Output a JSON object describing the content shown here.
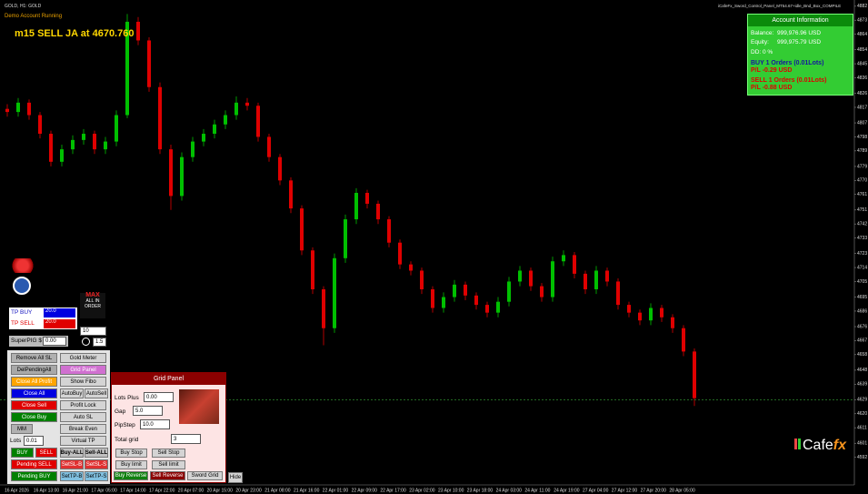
{
  "header": {
    "symbol": "GOLD, H1: GOLD",
    "account": "Demo Account Running",
    "signal": "m15 SELL JA at 4670.760",
    "indicator": "iCafeFx_Sword_Control_Panel_MT54.67+idle_Bnd_Box_COMPILE"
  },
  "chart_data": {
    "type": "candlestick",
    "up_color": "#00c000",
    "down_color": "#e00000",
    "bid_color": "#2e8b2e",
    "candles": [
      [
        4816,
        4819,
        4811,
        4814
      ],
      [
        4814,
        4823,
        4811,
        4820
      ],
      [
        4820,
        4822,
        4809,
        4812
      ],
      [
        4812,
        4814,
        4797,
        4800
      ],
      [
        4800,
        4802,
        4779,
        4782
      ],
      [
        4782,
        4793,
        4779,
        4790
      ],
      [
        4790,
        4799,
        4787,
        4796
      ],
      [
        4796,
        4803,
        4793,
        4800
      ],
      [
        4800,
        4802,
        4787,
        4790
      ],
      [
        4790,
        4798,
        4787,
        4795
      ],
      [
        4795,
        4815,
        4792,
        4812
      ],
      [
        4812,
        4877,
        4810,
        4872
      ],
      [
        4872,
        4875,
        4857,
        4860
      ],
      [
        4860,
        4862,
        4827,
        4830
      ],
      [
        4830,
        4833,
        4787,
        4790
      ],
      [
        4790,
        4793,
        4751,
        4760
      ],
      [
        4760,
        4788,
        4757,
        4785
      ],
      [
        4785,
        4798,
        4782,
        4795
      ],
      [
        4795,
        4803,
        4792,
        4800
      ],
      [
        4800,
        4809,
        4797,
        4806
      ],
      [
        4806,
        4815,
        4803,
        4812
      ],
      [
        4812,
        4824,
        4809,
        4820
      ],
      [
        4820,
        4823,
        4815,
        4818
      ],
      [
        4818,
        4820,
        4795,
        4798
      ],
      [
        4798,
        4800,
        4782,
        4785
      ],
      [
        4785,
        4787,
        4767,
        4770
      ],
      [
        4770,
        4772,
        4749,
        4752
      ],
      [
        4752,
        4754,
        4722,
        4725
      ],
      [
        4725,
        4727,
        4697,
        4700
      ],
      [
        4700,
        4702,
        4664,
        4675
      ],
      [
        4675,
        4723,
        4672,
        4720
      ],
      [
        4720,
        4748,
        4717,
        4745
      ],
      [
        4745,
        4765,
        4742,
        4762
      ],
      [
        4762,
        4764,
        4752,
        4755
      ],
      [
        4755,
        4757,
        4742,
        4745
      ],
      [
        4745,
        4747,
        4727,
        4730
      ],
      [
        4730,
        4732,
        4713,
        4716
      ],
      [
        4716,
        4718,
        4709,
        4712
      ],
      [
        4712,
        4714,
        4697,
        4700
      ],
      [
        4700,
        4702,
        4685,
        4688
      ],
      [
        4688,
        4698,
        4685,
        4695
      ],
      [
        4695,
        4706,
        4692,
        4703
      ],
      [
        4703,
        4705,
        4693,
        4696
      ],
      [
        4696,
        4698,
        4687,
        4690
      ],
      [
        4690,
        4692,
        4682,
        4685
      ],
      [
        4685,
        4695,
        4682,
        4692
      ],
      [
        4692,
        4708,
        4689,
        4705
      ],
      [
        4705,
        4715,
        4702,
        4712
      ],
      [
        4712,
        4714,
        4699,
        4702
      ],
      [
        4702,
        4704,
        4692,
        4695
      ],
      [
        4695,
        4721,
        4692,
        4718
      ],
      [
        4718,
        4725,
        4715,
        4722
      ],
      [
        4722,
        4724,
        4707,
        4710
      ],
      [
        4710,
        4712,
        4697,
        4700
      ],
      [
        4700,
        4715,
        4697,
        4712
      ],
      [
        4712,
        4714,
        4702,
        4705
      ],
      [
        4705,
        4707,
        4687,
        4690
      ],
      [
        4690,
        4692,
        4682,
        4685
      ],
      [
        4685,
        4687,
        4677,
        4680
      ],
      [
        4680,
        4691,
        4677,
        4688
      ],
      [
        4688,
        4690,
        4679,
        4682
      ],
      [
        4682,
        4684,
        4672,
        4675
      ],
      [
        4675,
        4677,
        4657,
        4660
      ],
      [
        4660,
        4662,
        4625,
        4630
      ]
    ],
    "ylim": [
      4576,
      4886
    ],
    "yticks": [
      4882,
      4873,
      4864,
      4854,
      4845,
      4836,
      4826,
      4817,
      4807,
      4798,
      4789,
      4779,
      4770,
      4761,
      4751,
      4742,
      4733,
      4723,
      4714,
      4705,
      4695,
      4686,
      4676,
      4667,
      4658,
      4648,
      4639,
      4629,
      4620,
      4611,
      4601,
      4592
    ],
    "bid_line": 4629,
    "time_labels": [
      "16 Apr 2026",
      "16 Apr 13:00",
      "16 Apr 21:00",
      "17 Apr 05:00",
      "17 Apr 14:00",
      "17 Apr 22:00",
      "20 Apr 07:00",
      "20 Apr 15:00",
      "20 Apr 23:00",
      "21 Apr 08:00",
      "21 Apr 16:00",
      "22 Apr 01:00",
      "22 Apr 09:00",
      "22 Apr 17:00",
      "23 Apr 02:00",
      "23 Apr 10:00",
      "23 Apr 18:00",
      "24 Apr 03:00",
      "24 Apr 11:00",
      "24 Apr 19:00",
      "27 Apr 04:00",
      "27 Apr 12:00",
      "27 Apr 20:00",
      "28 Apr 05:00"
    ]
  },
  "account_panel": {
    "title": "Account Information",
    "balance_label": "Balance:",
    "balance": "999,976.96 USD",
    "equity_label": "Equity:",
    "equity": "999,975.79 USD",
    "dd": "DD:  0 %",
    "buy_orders": "BUY 1 Orders (0.01Lots)",
    "buy_pl": "P/L  -0.29 USD",
    "sell_orders": "SELL 1 Orders (0.01Lots)",
    "sell_pl": "P/L  -0.88 USD"
  },
  "tp_panel": {
    "tp_buy_label": "TP BUY",
    "tp_buy": "20.0",
    "tp_sell_label": "TP SELL",
    "tp_sell": "20.0",
    "superpig_label": "SuperPIG $",
    "superpig": "0.00",
    "box_a": "10",
    "box_b": "1.5",
    "max_logo": [
      "MAX",
      "ALL IN",
      "ORDER"
    ]
  },
  "control_panel": {
    "buttons": [
      "Remove All SL",
      "Gold Meter",
      "DelPendingAll",
      "Grid Panel",
      "Close All Profit",
      "Show Fibo",
      "Close All",
      "AutoBuy",
      "AutoSell",
      "Close Sell",
      "Profit Lock",
      "Close Buy",
      "Auto SL",
      "MM",
      "Break Even",
      "Virtual TP",
      "BUY",
      "SELL",
      "Buy-ALL",
      "Sell-ALL",
      "Pending SELL",
      "SetSL-B",
      "SetSL-S",
      "Pending BUY",
      "SetTP-B",
      "SetTP-S"
    ],
    "lots_label": "Lots",
    "lots": "0.01"
  },
  "grid_panel": {
    "title": "Grid Panel",
    "lots_plus_label": "Lots Plus",
    "lots_plus": "0.00",
    "gap_label": "Gap",
    "gap": "5.0",
    "pipstep_label": "PipStep",
    "pipstep": "10.0",
    "total_grid_label": "Total grid",
    "total_grid": "3",
    "buttons": [
      "Buy Stop",
      "Sell Stop",
      "Buy limit",
      "Sell limit",
      "Buy Reverse",
      "Sell Reverse",
      "Sword Grid"
    ]
  },
  "hide": "Hide",
  "logo": {
    "main": "Cafe",
    "accent": "fx"
  }
}
